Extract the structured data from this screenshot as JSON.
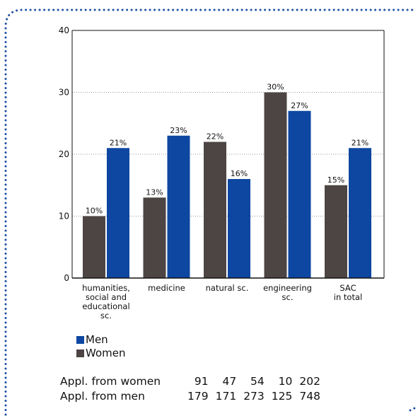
{
  "chart_data": {
    "type": "bar",
    "categories": [
      [
        "humanities,",
        "social and",
        "educational",
        "sc."
      ],
      [
        "medicine"
      ],
      [
        "natural sc."
      ],
      [
        "engineering",
        "sc."
      ],
      [
        "SAC",
        "in total"
      ]
    ],
    "series": [
      {
        "name": "Women",
        "values": [
          10,
          13,
          22,
          30,
          15
        ],
        "labels": [
          "10%",
          "13%",
          "22%",
          "30%",
          "15%"
        ],
        "color": "#4d4543"
      },
      {
        "name": "Men",
        "values": [
          21,
          23,
          16,
          27,
          21
        ],
        "labels": [
          "21%",
          "23%",
          "16%",
          "27%",
          "21%"
        ],
        "color": "#0d47a1"
      }
    ],
    "ylim": [
      0,
      40
    ],
    "yticks": [
      0,
      10,
      20,
      30,
      40
    ],
    "ytick_labels": [
      "0",
      "10",
      "20",
      "30",
      "40"
    ],
    "grid": "dotted horizontal",
    "legend_position": "below-left"
  },
  "legend": {
    "items": [
      {
        "label": "Men",
        "color": "#0d47a1"
      },
      {
        "label": "Women",
        "color": "#4d4543"
      }
    ]
  },
  "applications": {
    "rows": [
      {
        "label": "Appl. from women",
        "values": [
          "91",
          "47",
          "54",
          "10",
          "202"
        ]
      },
      {
        "label": "Appl. from men",
        "values": [
          "179",
          "171",
          "273",
          "125",
          "748"
        ]
      }
    ]
  },
  "frame_color": "#1a4fa0"
}
